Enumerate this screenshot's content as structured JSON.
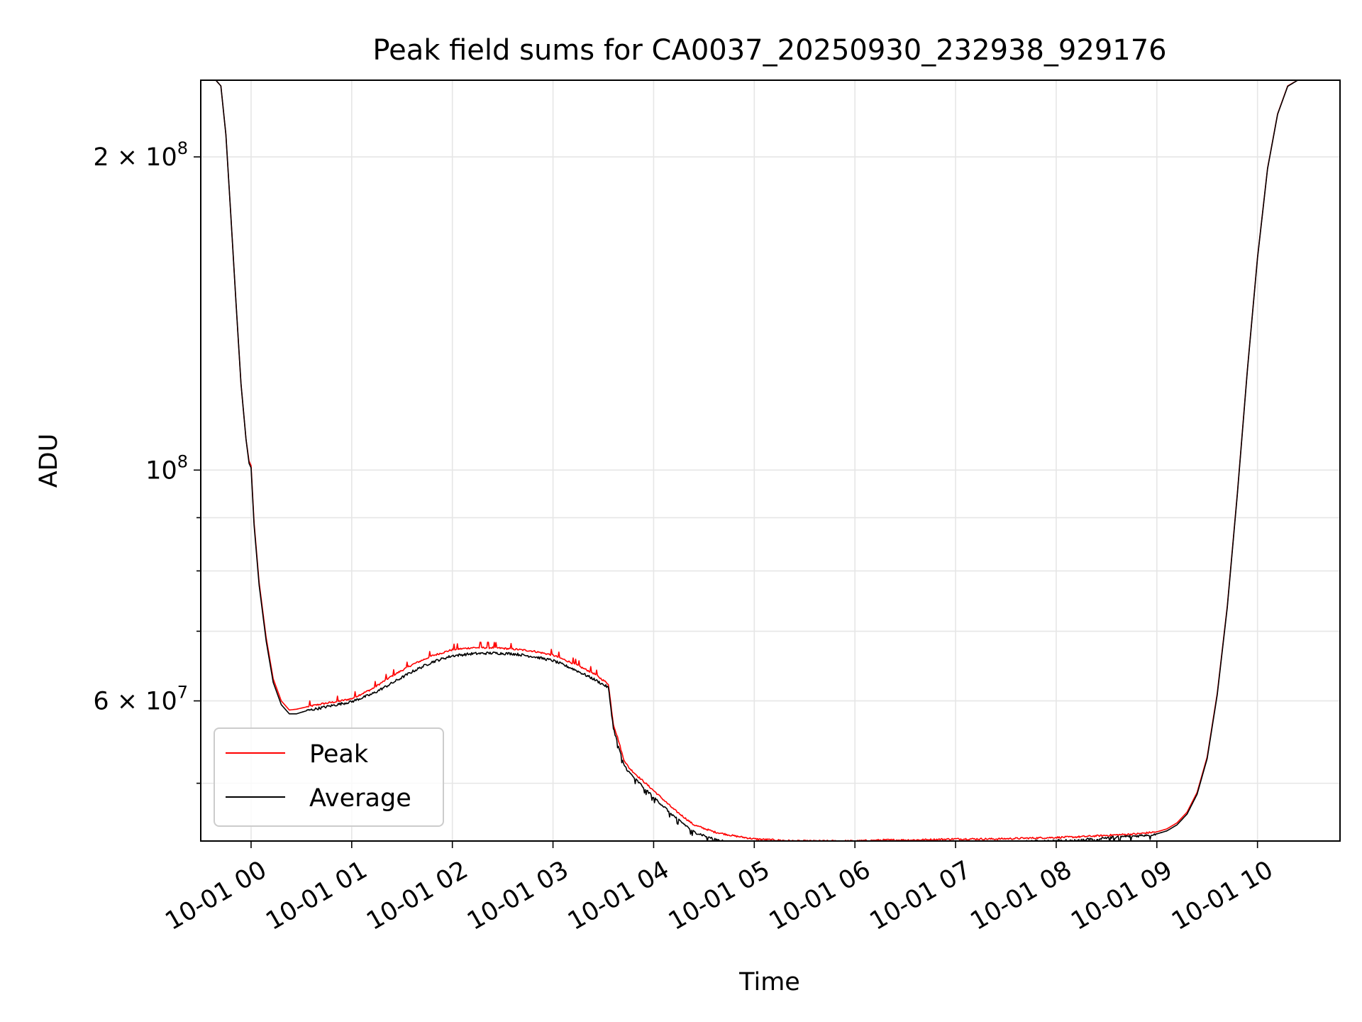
{
  "chart_data": {
    "type": "line",
    "title": "Peak field sums for CA0037_20250930_232938_929176",
    "xlabel": "Time",
    "ylabel": "ADU",
    "yscale": "log",
    "xlim": [
      -0.5,
      10.82
    ],
    "ylim": [
      44000000,
      237000000
    ],
    "grid": true,
    "legend_position": "lower-left",
    "x_ticks": [
      {
        "value": 0,
        "label": "10-01 00"
      },
      {
        "value": 1,
        "label": "10-01 01"
      },
      {
        "value": 2,
        "label": "10-01 02"
      },
      {
        "value": 3,
        "label": "10-01 03"
      },
      {
        "value": 4,
        "label": "10-01 04"
      },
      {
        "value": 5,
        "label": "10-01 05"
      },
      {
        "value": 6,
        "label": "10-01 06"
      },
      {
        "value": 7,
        "label": "10-01 07"
      },
      {
        "value": 8,
        "label": "10-01 08"
      },
      {
        "value": 9,
        "label": "10-01 09"
      },
      {
        "value": 10,
        "label": "10-01 10"
      }
    ],
    "y_major_ticks": [
      {
        "value": 200000000,
        "base": "2 × 10",
        "exp": "8"
      },
      {
        "value": 100000000,
        "base": "10",
        "exp": "8"
      },
      {
        "value": 60000000,
        "base": "6 × 10",
        "exp": "7"
      }
    ],
    "y_minor_ticks": [
      300000000,
      90000000,
      80000000,
      70000000,
      50000000,
      40000000
    ],
    "x_unit": "hours since 2025-10-01 00:00",
    "series": [
      {
        "name": "Peak",
        "color": "#ff0000",
        "x": [
          -0.5,
          -0.35,
          -0.3,
          -0.25,
          -0.2,
          -0.15,
          -0.1,
          -0.05,
          -0.02,
          0.0,
          0.03,
          0.08,
          0.15,
          0.22,
          0.3,
          0.38,
          0.45,
          0.55,
          0.7,
          0.85,
          1.0,
          1.2,
          1.4,
          1.6,
          1.8,
          2.0,
          2.2,
          2.4,
          2.6,
          2.8,
          3.0,
          3.2,
          3.4,
          3.55,
          3.6,
          3.65,
          3.7,
          3.75,
          3.85,
          4.0,
          4.2,
          4.4,
          4.6,
          4.8,
          5.0,
          5.2,
          5.4,
          5.6,
          5.8,
          6.0,
          6.3,
          6.6,
          7.0,
          7.4,
          7.8,
          8.2,
          8.6,
          8.8,
          8.9,
          9.0,
          9.1,
          9.2,
          9.3,
          9.4,
          9.5,
          9.6,
          9.7,
          9.8,
          9.9,
          10.0,
          10.1,
          10.2,
          10.3,
          10.4,
          10.5,
          10.6,
          10.7,
          10.82
        ],
        "values": [
          237000000,
          237000000,
          234000000,
          210000000,
          175000000,
          145000000,
          121000000,
          107000000,
          102000000,
          101000000,
          89000000,
          78000000,
          69000000,
          63000000,
          60000000,
          58800000,
          58900000,
          59200000,
          59600000,
          59900000,
          60300000,
          61600000,
          63400000,
          65000000,
          66300000,
          67200000,
          67500000,
          67500000,
          67300000,
          67000000,
          66400000,
          65200000,
          63800000,
          62300000,
          57000000,
          55000000,
          52800000,
          51800000,
          50700000,
          49200000,
          47200000,
          45600000,
          44900000,
          44500000,
          44200000,
          44100000,
          44000000,
          44000000,
          44000000,
          44000000,
          44100000,
          44100000,
          44200000,
          44200000,
          44300000,
          44400000,
          44600000,
          44700000,
          44800000,
          44900000,
          45200000,
          45800000,
          46900000,
          49000000,
          53000000,
          61000000,
          74000000,
          95000000,
          125000000,
          160000000,
          195000000,
          220000000,
          234000000,
          237000000,
          237000000,
          237000000,
          237000000,
          237000000
        ]
      },
      {
        "name": "Average",
        "color": "#000000",
        "x": [
          -0.5,
          -0.35,
          -0.3,
          -0.25,
          -0.2,
          -0.15,
          -0.1,
          -0.05,
          -0.02,
          0.0,
          0.03,
          0.08,
          0.15,
          0.22,
          0.3,
          0.38,
          0.45,
          0.55,
          0.7,
          0.85,
          1.0,
          1.2,
          1.4,
          1.6,
          1.8,
          2.0,
          2.2,
          2.4,
          2.6,
          2.8,
          3.0,
          3.2,
          3.4,
          3.55,
          3.6,
          3.65,
          3.7,
          3.75,
          3.85,
          4.0,
          4.2,
          4.4,
          4.6,
          4.8,
          5.0,
          5.2,
          5.4,
          5.6,
          5.8,
          6.0,
          6.3,
          6.6,
          7.0,
          7.4,
          7.8,
          8.2,
          8.6,
          8.8,
          8.9,
          9.0,
          9.1,
          9.2,
          9.3,
          9.4,
          9.5,
          9.6,
          9.7,
          9.8,
          9.9,
          10.0,
          10.1,
          10.2,
          10.3,
          10.4,
          10.5,
          10.6,
          10.7,
          10.82
        ],
        "values": [
          237000000,
          237000000,
          234000000,
          210000000,
          175000000,
          145000000,
          121000000,
          107000000,
          101500000,
          100500000,
          88500000,
          77500000,
          68500000,
          62500000,
          59500000,
          58300000,
          58300000,
          58700000,
          59100000,
          59500000,
          59900000,
          60900000,
          62400000,
          64000000,
          65400000,
          66300000,
          66600000,
          66700000,
          66600000,
          66200000,
          65600000,
          64400000,
          63000000,
          61800000,
          56500000,
          54300000,
          52200000,
          51300000,
          50100000,
          48500000,
          46500000,
          44900000,
          44200000,
          43800000,
          43600000,
          43500000,
          43400000,
          43400000,
          43500000,
          43500000,
          43600000,
          43700000,
          43800000,
          43900000,
          44000000,
          44100000,
          44400000,
          44500000,
          44600000,
          44700000,
          45000000,
          45600000,
          46700000,
          48800000,
          52800000,
          60800000,
          73800000,
          94800000,
          124800000,
          159800000,
          194800000,
          219800000,
          233800000,
          237000000,
          237000000,
          237000000,
          237000000,
          237000000
        ]
      }
    ]
  }
}
